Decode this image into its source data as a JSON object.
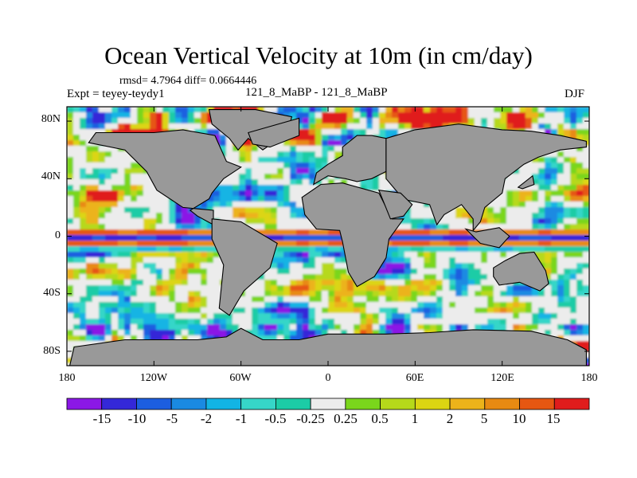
{
  "title": "Ocean Vertical Velocity at 10m (in cm/day)",
  "stats_line": "rmsd= 4.7964 diff= 0.0664446",
  "experiment_line": "Expt = teyey-teydy1",
  "comparison_line": "121_8_MaBP - 121_8_MaBP",
  "season": "DJF",
  "lat_labels": [
    "80N",
    "40N",
    "0",
    "40S",
    "80S"
  ],
  "lon_labels": [
    "180",
    "120W",
    "60W",
    "0",
    "60E",
    "120E",
    "180"
  ],
  "colorbar": {
    "colors": [
      "#8b18e6",
      "#3428d8",
      "#1c5ee0",
      "#1a8ae2",
      "#12b4e4",
      "#36d6c8",
      "#1ccca6",
      "#ececec",
      "#7ad61c",
      "#b6d91a",
      "#dcd512",
      "#ecb31a",
      "#e88a12",
      "#e65712",
      "#e01c1c"
    ],
    "labels": [
      "-15",
      "-10",
      "-5",
      "-2",
      "-1",
      "-0.5",
      "-0.25",
      "0.25",
      "0.5",
      "1",
      "2",
      "5",
      "10",
      "15"
    ]
  },
  "land_color": "#999999",
  "neutral_color": "#ececec"
}
